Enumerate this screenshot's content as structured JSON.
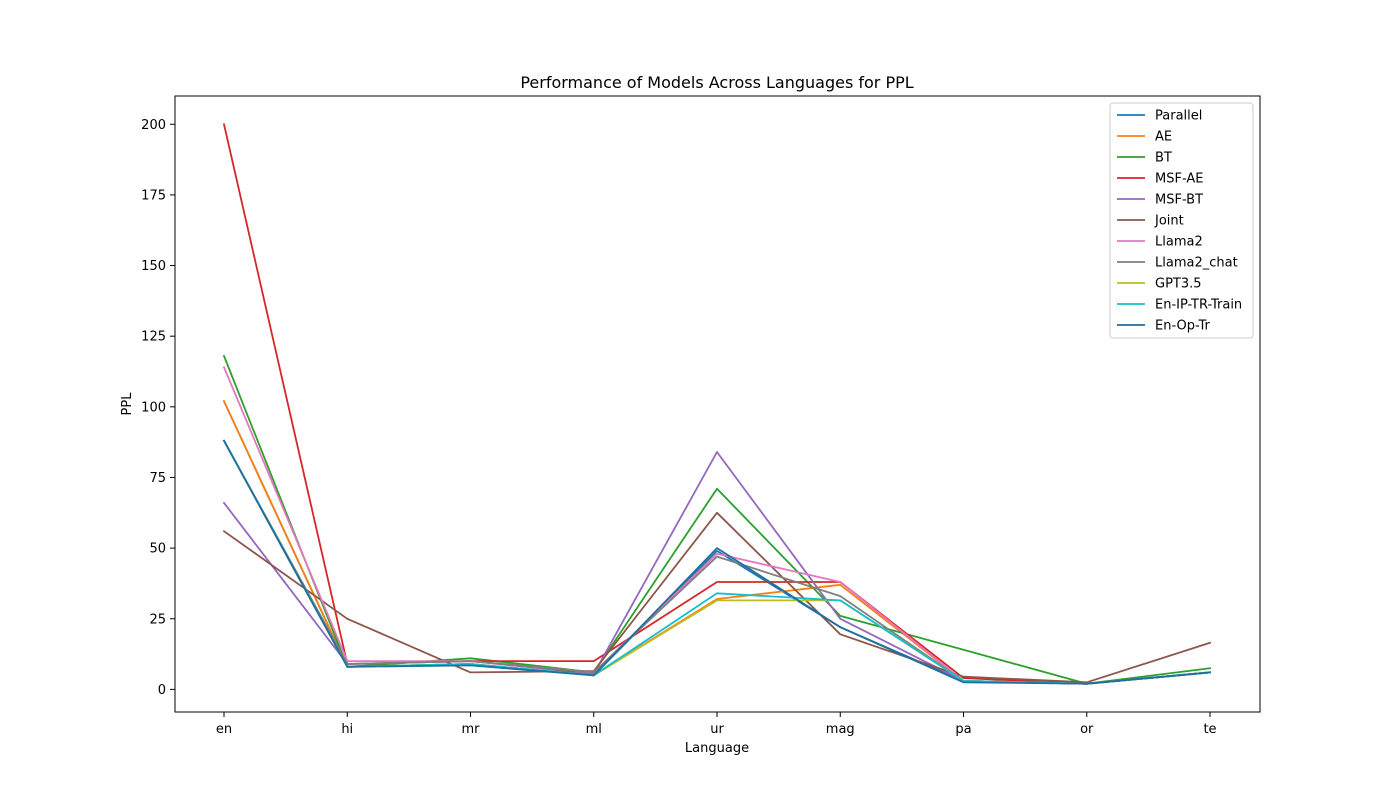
{
  "chart_data": {
    "type": "line",
    "title": "Performance of Models Across Languages for PPL",
    "xlabel": "Language",
    "ylabel": "PPL",
    "categories": [
      "en",
      "hi",
      "mr",
      "ml",
      "ur",
      "mag",
      "pa",
      "or",
      "te"
    ],
    "ylim": [
      -8,
      210
    ],
    "yticks": [
      0,
      25,
      50,
      75,
      100,
      125,
      150,
      175,
      200
    ],
    "grid": false,
    "legend_position": "top-right",
    "series": [
      {
        "name": "Parallel",
        "color": "#1f77b4",
        "values": [
          102,
          8,
          9,
          5,
          49,
          22,
          3,
          2,
          6
        ]
      },
      {
        "name": "AE",
        "color": "#ff7f0e",
        "values": [
          102,
          8,
          9,
          5,
          32,
          37,
          3,
          2,
          6
        ]
      },
      {
        "name": "BT",
        "color": "#2ca02c",
        "values": [
          118,
          8,
          11,
          6,
          71,
          26,
          14,
          2,
          7.5
        ]
      },
      {
        "name": "MSF-AE",
        "color": "#d62728",
        "values": [
          200,
          9,
          10,
          10,
          38,
          38,
          4,
          2,
          6
        ]
      },
      {
        "name": "MSF-BT",
        "color": "#9467bd",
        "values": [
          66,
          9,
          10,
          5.5,
          84,
          25,
          3,
          2,
          6
        ]
      },
      {
        "name": "Joint",
        "color": "#8c564b",
        "values": [
          56,
          25,
          6,
          6.5,
          62.5,
          19.5,
          4.5,
          2.5,
          16.5
        ]
      },
      {
        "name": "Llama2",
        "color": "#e377c2",
        "values": [
          114,
          10,
          10,
          6,
          48,
          38,
          3,
          2,
          6
        ]
      },
      {
        "name": "Llama2_chat",
        "color": "#7f7f7f",
        "values": [
          88,
          9,
          10,
          6,
          47,
          33,
          3,
          2,
          6
        ]
      },
      {
        "name": "GPT3.5",
        "color": "#bcbd22",
        "values": [
          88,
          8,
          9,
          5,
          31.5,
          31.5,
          3,
          2,
          6
        ]
      },
      {
        "name": "En-IP-TR-Train",
        "color": "#17becf",
        "values": [
          88,
          8,
          9,
          5,
          34,
          31.5,
          3,
          2,
          6
        ]
      },
      {
        "name": "En-Op-Tr",
        "color": "#1f6f9f",
        "values": [
          88,
          8,
          8.5,
          5,
          50,
          22,
          2.5,
          2,
          6
        ]
      }
    ]
  }
}
